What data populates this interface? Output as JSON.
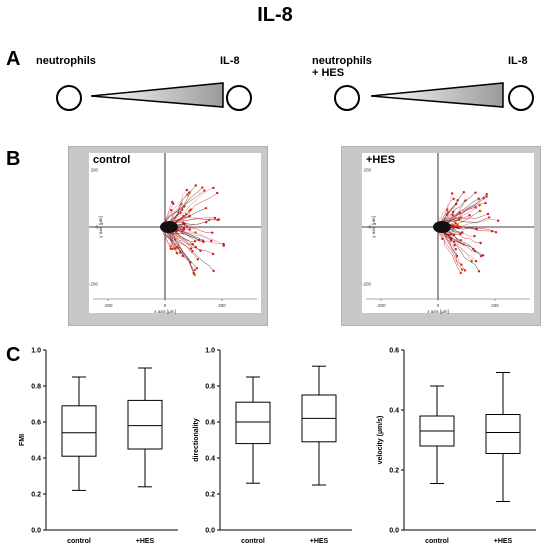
{
  "title": "IL-8",
  "panel_a": {
    "letter": "A",
    "left": {
      "source_label": "neutrophils",
      "target_label": "IL-8"
    },
    "right": {
      "source_label_line1": "neutrophils",
      "source_label_line2": "+ HES",
      "target_label": "IL-8"
    }
  },
  "panel_b": {
    "letter": "B",
    "plots": [
      {
        "name": "control",
        "xlabel": "x axis [µm]",
        "ylabel": "y axis [µm]",
        "xticks": [
          "-400",
          "-200",
          "0",
          "200",
          "400"
        ],
        "yticks": [
          "400",
          "200",
          "0",
          "-200",
          "-400"
        ]
      },
      {
        "name": "+HES",
        "xlabel": "x axis [µm]",
        "ylabel": "y axis [µm]",
        "xticks": [
          "-400",
          "-200",
          "0",
          "200",
          "400"
        ],
        "yticks": [
          "400",
          "200",
          "0",
          "-200",
          "-400"
        ]
      }
    ]
  },
  "panel_c": {
    "letter": "C"
  },
  "chart_data": [
    {
      "type": "box",
      "ylabel": "FMI",
      "ylim": [
        0.0,
        1.0
      ],
      "yticks": [
        "0.0",
        "0.2",
        "0.4",
        "0.6",
        "0.8",
        "1.0"
      ],
      "categories": [
        "control",
        "+HES"
      ],
      "boxes": [
        {
          "min": 0.22,
          "q1": 0.41,
          "median": 0.54,
          "q3": 0.69,
          "max": 0.85
        },
        {
          "min": 0.24,
          "q1": 0.45,
          "median": 0.58,
          "q3": 0.72,
          "max": 0.9
        }
      ]
    },
    {
      "type": "box",
      "ylabel": "directionality",
      "ylim": [
        0.0,
        1.0
      ],
      "yticks": [
        "0.0",
        "0.2",
        "0.4",
        "0.6",
        "0.8",
        "1.0"
      ],
      "categories": [
        "control",
        "+HES"
      ],
      "boxes": [
        {
          "min": 0.26,
          "q1": 0.48,
          "median": 0.6,
          "q3": 0.71,
          "max": 0.85
        },
        {
          "min": 0.25,
          "q1": 0.49,
          "median": 0.62,
          "q3": 0.75,
          "max": 0.91
        }
      ]
    },
    {
      "type": "box",
      "ylabel": "velocity (µm/s)",
      "ylim": [
        0.0,
        0.6
      ],
      "yticks": [
        "0.0",
        "0.2",
        "0.4",
        "0.6"
      ],
      "categories": [
        "control",
        "+HES"
      ],
      "boxes": [
        {
          "min": 0.155,
          "q1": 0.28,
          "median": 0.33,
          "q3": 0.38,
          "max": 0.48
        },
        {
          "min": 0.095,
          "q1": 0.255,
          "median": 0.325,
          "q3": 0.385,
          "max": 0.525
        }
      ]
    }
  ]
}
